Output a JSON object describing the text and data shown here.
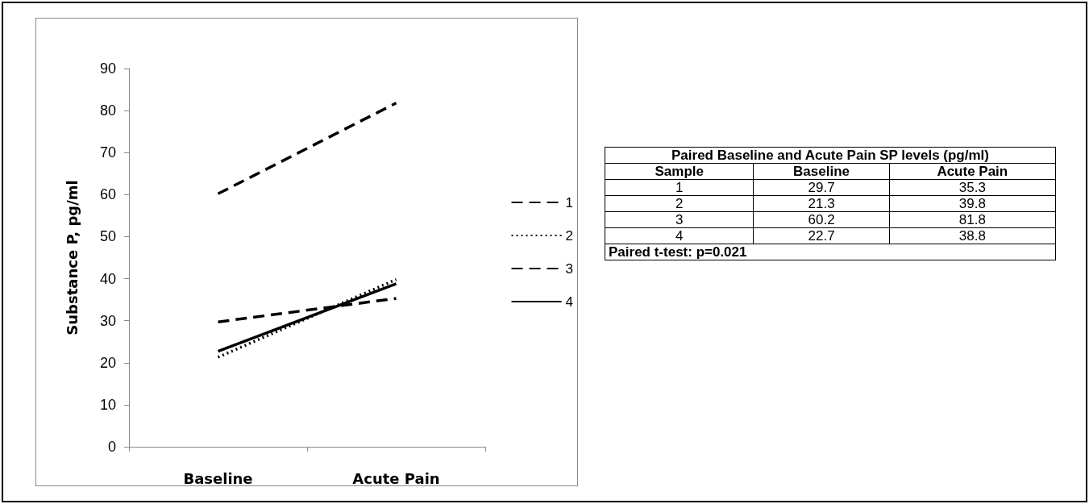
{
  "chart_data": [
    {
      "type": "line",
      "ylabel": "Substance P, pg/ml",
      "categories": [
        "Baseline",
        "Acute Pain"
      ],
      "series": [
        {
          "name": "1",
          "color": "#000000",
          "values": [
            29.7,
            35.3
          ],
          "line_style": "dashed"
        },
        {
          "name": "2",
          "color": "#000000",
          "values": [
            21.3,
            39.8
          ],
          "line_style": "dotted"
        },
        {
          "name": "3",
          "color": "#000000",
          "values": [
            60.2,
            81.8
          ],
          "line_style": "dashed"
        },
        {
          "name": "4",
          "color": "#000000",
          "values": [
            22.7,
            38.8
          ],
          "line_style": "solid"
        }
      ],
      "ylim": [
        0,
        90
      ],
      "yticks": [
        0,
        10,
        20,
        30,
        40,
        50,
        60,
        70,
        80,
        90
      ],
      "grid": false,
      "legend": "right",
      "marker": "none"
    },
    {
      "type": "heatmap",
      "title": "Paired Baseline and Acute Pain SP levels (pg/ml)",
      "ylabel": "Sample",
      "categories": [
        "Baseline",
        "Acute Pain"
      ],
      "y_categories": [
        "1",
        "2",
        "3",
        "4"
      ],
      "cells": [
        [
          29.7,
          35.3
        ],
        [
          21.3,
          39.8
        ],
        [
          60.2,
          81.8
        ],
        [
          22.7,
          38.8
        ]
      ],
      "data_labels": true,
      "annotations": [
        "Paired t-test: p=0.021"
      ]
    }
  ]
}
